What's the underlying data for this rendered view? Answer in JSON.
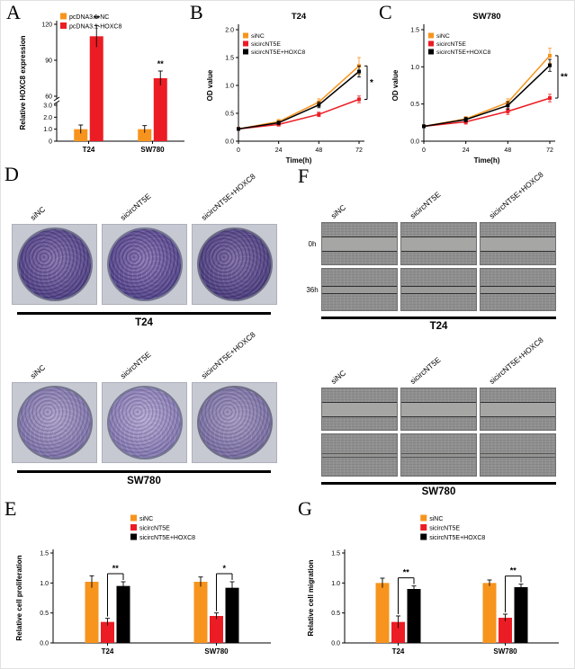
{
  "colors": {
    "orange": "#F7941D",
    "red": "#EC1C24",
    "black": "#000000"
  },
  "panels": {
    "a": "A",
    "b": "B",
    "c": "C",
    "d": "D",
    "e": "E",
    "f": "F",
    "g": "G"
  },
  "chart_data": [
    {
      "id": "A",
      "type": "bar",
      "ylabel": "Relative HOXC8 expression",
      "categories": [
        "T24",
        "SW780"
      ],
      "legend_position": "top-left",
      "axis_break": {
        "lower_lim": [
          0,
          3.0
        ],
        "upper_lim": [
          60,
          120
        ],
        "lower_ticks": [
          "0",
          "1.0",
          "2.0",
          "3.0"
        ],
        "upper_ticks": [
          "60",
          "90",
          "120"
        ]
      },
      "series": [
        {
          "name": "pcDNA3.1-NC",
          "color": "#F7941D",
          "values": [
            1.0,
            1.0
          ],
          "errors": [
            0.35,
            0.3
          ]
        },
        {
          "name": "pcDNA3.1-HOXC8",
          "color": "#EC1C24",
          "values": [
            110,
            75
          ],
          "errors": [
            9,
            6
          ]
        }
      ],
      "sig_marks": [
        {
          "category": 0,
          "series": 1,
          "label": "**"
        },
        {
          "category": 1,
          "series": 1,
          "label": "**"
        }
      ]
    },
    {
      "id": "B",
      "type": "line",
      "title": "T24",
      "xlabel": "Time(h)",
      "ylabel": "OD value",
      "x": [
        0,
        24,
        48,
        72
      ],
      "ylim": [
        0,
        2.0
      ],
      "yticks": [
        "0.0",
        "0.5",
        "1.0",
        "1.5",
        "2.0"
      ],
      "series": [
        {
          "name": "siNC",
          "color": "#F7941D",
          "values": [
            0.22,
            0.35,
            0.7,
            1.35
          ],
          "errors": [
            0.02,
            0.04,
            0.06,
            0.15
          ]
        },
        {
          "name": "sicircNT5E",
          "color": "#EC1C24",
          "values": [
            0.22,
            0.3,
            0.48,
            0.75
          ],
          "errors": [
            0.02,
            0.03,
            0.04,
            0.06
          ]
        },
        {
          "name": "sicircNT5E+HOXC8",
          "color": "#000000",
          "values": [
            0.22,
            0.33,
            0.65,
            1.25
          ],
          "errors": [
            0.02,
            0.03,
            0.05,
            0.1
          ]
        }
      ],
      "sig": "*"
    },
    {
      "id": "C",
      "type": "line",
      "title": "SW780",
      "xlabel": "Time(h)",
      "ylabel": "OD value",
      "x": [
        0,
        24,
        48,
        72
      ],
      "ylim": [
        0,
        1.5
      ],
      "yticks": [
        "0.0",
        "0.5",
        "1.0",
        "1.5"
      ],
      "series": [
        {
          "name": "siNC",
          "color": "#F7941D",
          "values": [
            0.2,
            0.3,
            0.52,
            1.15
          ],
          "errors": [
            0.02,
            0.03,
            0.05,
            0.1
          ]
        },
        {
          "name": "sicircNT5E",
          "color": "#EC1C24",
          "values": [
            0.2,
            0.26,
            0.4,
            0.58
          ],
          "errors": [
            0.02,
            0.03,
            0.04,
            0.05
          ]
        },
        {
          "name": "sicircNT5E+HOXC8",
          "color": "#000000",
          "values": [
            0.2,
            0.29,
            0.48,
            1.02
          ],
          "errors": [
            0.02,
            0.03,
            0.05,
            0.08
          ]
        }
      ],
      "sig": "**"
    },
    {
      "id": "E",
      "type": "bar",
      "ylabel": "Relative cell proliferation",
      "categories": [
        "T24",
        "SW780"
      ],
      "ylim": [
        0,
        1.5
      ],
      "yticks": [
        "0.0",
        "0.5",
        "1.0",
        "1.5"
      ],
      "legend_position": "top-right",
      "series": [
        {
          "name": "siNC",
          "color": "#F7941D",
          "values": [
            1.02,
            1.02
          ],
          "errors": [
            0.1,
            0.08
          ]
        },
        {
          "name": "sicircNT5E",
          "color": "#EC1C24",
          "values": [
            0.35,
            0.45
          ],
          "errors": [
            0.06,
            0.05
          ]
        },
        {
          "name": "sicircNT5E+HOXC8",
          "color": "#000000",
          "values": [
            0.95,
            0.92
          ],
          "errors": [
            0.07,
            0.1
          ]
        }
      ],
      "sig_brackets": [
        {
          "category": 0,
          "between": [
            1,
            2
          ],
          "label": "**"
        },
        {
          "category": 1,
          "between": [
            1,
            2
          ],
          "label": "*"
        }
      ]
    },
    {
      "id": "G",
      "type": "bar",
      "ylabel": "Relative cell migration",
      "categories": [
        "T24",
        "SW780"
      ],
      "ylim": [
        0,
        1.5
      ],
      "yticks": [
        "0.0",
        "0.5",
        "1.0",
        "1.5"
      ],
      "legend_position": "top-right",
      "series": [
        {
          "name": "siNC",
          "color": "#F7941D",
          "values": [
            1.0,
            1.0
          ],
          "errors": [
            0.08,
            0.05
          ]
        },
        {
          "name": "sicircNT5E",
          "color": "#EC1C24",
          "values": [
            0.35,
            0.42
          ],
          "errors": [
            0.1,
            0.06
          ]
        },
        {
          "name": "sicircNT5E+HOXC8",
          "color": "#000000",
          "values": [
            0.9,
            0.93
          ],
          "errors": [
            0.05,
            0.05
          ]
        }
      ],
      "sig_brackets": [
        {
          "category": 0,
          "between": [
            1,
            2
          ],
          "label": "**"
        },
        {
          "category": 1,
          "between": [
            1,
            2
          ],
          "label": "**"
        }
      ]
    }
  ],
  "panel_d": {
    "col_labels": [
      "siNC",
      "sicircNT5E",
      "sicircNT5E+HOXC8"
    ],
    "group_labels": [
      "T24",
      "SW780"
    ]
  },
  "panel_f": {
    "col_labels": [
      "siNC",
      "sicircNT5E",
      "sicircNT5E+HOXC8"
    ],
    "row_labels": [
      "0h",
      "36h"
    ],
    "group_labels": [
      "T24",
      "SW780"
    ]
  }
}
